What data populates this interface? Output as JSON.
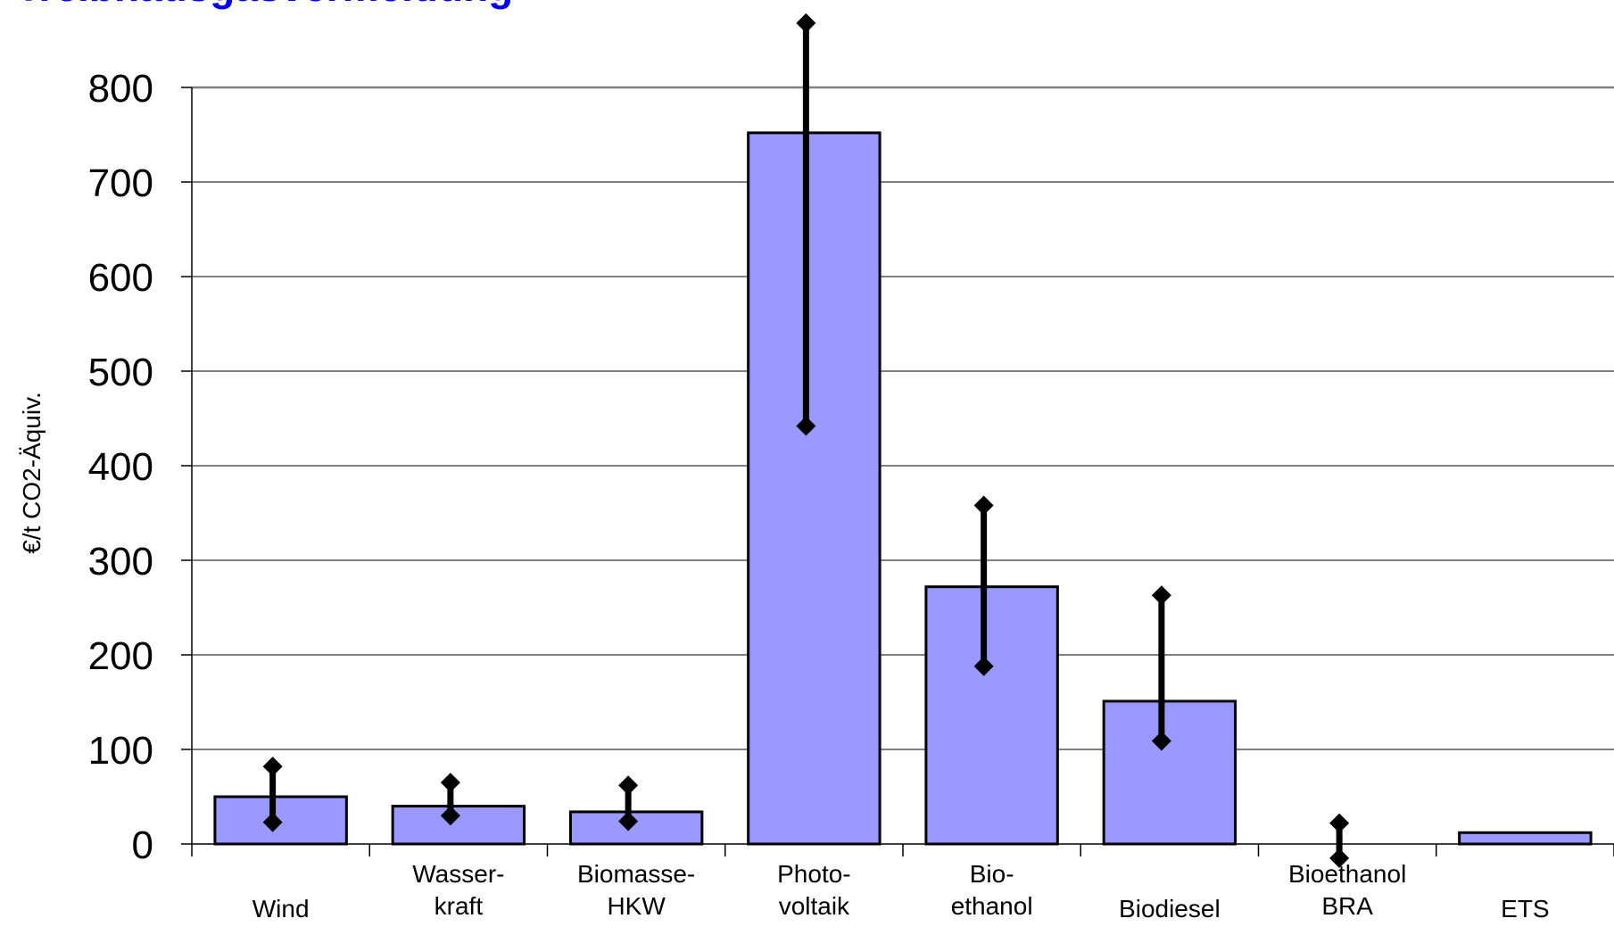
{
  "title": "Treibhausgasvermeidung",
  "chart_data": {
    "type": "bar",
    "ylabel": "€/t CO2-Äquiv.",
    "xlabel": "",
    "ylim": [
      0,
      800
    ],
    "yticks": [
      "0",
      "100",
      "200",
      "300",
      "400",
      "500",
      "600",
      "700",
      "800"
    ],
    "grid": true,
    "colors": {
      "bar": "#9999FF",
      "bar_edge": "#000000",
      "error": "#000000",
      "grid": "#000000"
    },
    "categories": [
      [
        "Wind"
      ],
      [
        "Wasser-",
        "kraft"
      ],
      [
        "Biomasse-",
        "HKW"
      ],
      [
        "Photo-",
        "voltaik"
      ],
      [
        "Bio-",
        "ethanol"
      ],
      [
        "Biodiesel"
      ],
      [
        "Bioethanol",
        "BRA"
      ],
      [
        "ETS"
      ]
    ],
    "values": [
      50,
      40,
      34,
      752,
      272,
      151,
      0,
      12
    ],
    "error_low": [
      23,
      30,
      24,
      442,
      188,
      109,
      -15,
      null
    ],
    "error_high": [
      82,
      65,
      62,
      868,
      358,
      263,
      22,
      null
    ]
  }
}
